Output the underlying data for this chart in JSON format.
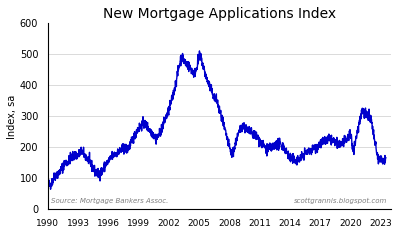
{
  "title": "New Mortgage Applications Index",
  "ylabel": "Index, sa",
  "ylim": [
    0,
    600
  ],
  "yticks": [
    0,
    100,
    200,
    300,
    400,
    500,
    600
  ],
  "xlim_start": 1990.0,
  "xlim_end": 2024.0,
  "xtick_years": [
    1990,
    1993,
    1996,
    1999,
    2002,
    2005,
    2008,
    2011,
    2014,
    2017,
    2020,
    2023
  ],
  "line_color": "#0000CC",
  "line_width": 1.0,
  "source_text": "Source: Mortgage Bankers Assoc.",
  "website_text": "scottgrannis.blogspot.com",
  "background_color": "#ffffff",
  "grid_color": "#cccccc",
  "data_years": [
    1990.0,
    1990.25,
    1990.5,
    1990.75,
    1991.0,
    1991.25,
    1991.5,
    1991.75,
    1992.0,
    1992.25,
    1992.5,
    1992.75,
    1993.0,
    1993.25,
    1993.5,
    1993.75,
    1994.0,
    1994.25,
    1994.5,
    1994.75,
    1995.0,
    1995.25,
    1995.5,
    1995.75,
    1996.0,
    1996.25,
    1996.5,
    1996.75,
    1997.0,
    1997.25,
    1997.5,
    1997.75,
    1998.0,
    1998.25,
    1998.5,
    1998.75,
    1999.0,
    1999.25,
    1999.5,
    1999.75,
    2000.0,
    2000.25,
    2000.5,
    2000.75,
    2001.0,
    2001.25,
    2001.5,
    2001.75,
    2002.0,
    2002.25,
    2002.5,
    2002.75,
    2003.0,
    2003.25,
    2003.5,
    2003.75,
    2004.0,
    2004.25,
    2004.5,
    2004.75,
    2005.0,
    2005.25,
    2005.5,
    2005.75,
    2006.0,
    2006.25,
    2006.5,
    2006.75,
    2007.0,
    2007.25,
    2007.5,
    2007.75,
    2008.0,
    2008.25,
    2008.5,
    2008.75,
    2009.0,
    2009.25,
    2009.5,
    2009.75,
    2010.0,
    2010.25,
    2010.5,
    2010.75,
    2011.0,
    2011.25,
    2011.5,
    2011.75,
    2012.0,
    2012.25,
    2012.5,
    2012.75,
    2013.0,
    2013.25,
    2013.5,
    2013.75,
    2014.0,
    2014.25,
    2014.5,
    2014.75,
    2015.0,
    2015.25,
    2015.5,
    2015.75,
    2016.0,
    2016.25,
    2016.5,
    2016.75,
    2017.0,
    2017.25,
    2017.5,
    2017.75,
    2018.0,
    2018.25,
    2018.5,
    2018.75,
    2019.0,
    2019.25,
    2019.5,
    2019.75,
    2020.0,
    2020.25,
    2020.5,
    2020.75,
    2021.0,
    2021.25,
    2021.5,
    2021.75,
    2022.0,
    2022.25,
    2022.5,
    2022.75,
    2023.0,
    2023.25,
    2023.5
  ],
  "data_values": [
    90,
    80,
    95,
    110,
    115,
    125,
    140,
    150,
    155,
    165,
    170,
    175,
    175,
    185,
    180,
    170,
    160,
    145,
    130,
    120,
    115,
    120,
    130,
    145,
    155,
    165,
    175,
    180,
    185,
    190,
    195,
    195,
    200,
    215,
    230,
    250,
    260,
    270,
    275,
    270,
    260,
    250,
    240,
    230,
    240,
    260,
    280,
    300,
    320,
    350,
    380,
    420,
    460,
    490,
    480,
    470,
    460,
    450,
    440,
    460,
    490,
    480,
    450,
    420,
    400,
    380,
    360,
    350,
    320,
    290,
    260,
    230,
    200,
    180,
    200,
    230,
    250,
    270,
    265,
    255,
    250,
    245,
    240,
    235,
    220,
    210,
    200,
    195,
    195,
    200,
    205,
    210,
    210,
    205,
    195,
    180,
    165,
    160,
    158,
    160,
    165,
    170,
    180,
    185,
    190,
    195,
    200,
    205,
    210,
    215,
    220,
    225,
    225,
    220,
    215,
    210,
    210,
    215,
    220,
    230,
    240,
    200,
    220,
    260,
    300,
    320,
    310,
    300,
    290,
    250,
    200,
    165,
    160,
    155,
    165
  ]
}
